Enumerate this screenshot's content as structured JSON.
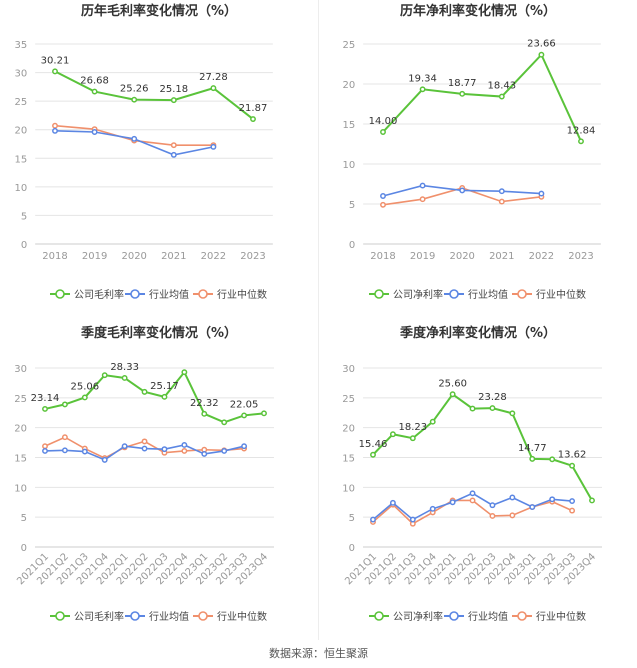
{
  "footer": "数据来源：恒生聚源",
  "colors": {
    "company": "#5ac33a",
    "avg": "#5b86e3",
    "median": "#f0906c",
    "axis": "#999999",
    "grid": "#e4e4e4"
  },
  "chart_data": [
    {
      "type": "line",
      "title": "历年毛利率变化情况（%）",
      "categories": [
        "2018",
        "2019",
        "2020",
        "2021",
        "2022",
        "2023"
      ],
      "ylim": [
        0,
        35
      ],
      "yticks": [
        0,
        5,
        10,
        15,
        20,
        25,
        30,
        35
      ],
      "legend": "bottom",
      "series": [
        {
          "name": "公司毛利率",
          "values": [
            30.21,
            26.68,
            25.26,
            25.18,
            27.28,
            21.87
          ]
        },
        {
          "name": "行业均值",
          "values": [
            19.8,
            19.6,
            18.4,
            15.6,
            17.0,
            null
          ]
        },
        {
          "name": "行业中位数",
          "values": [
            20.7,
            20.1,
            18.1,
            17.3,
            17.3,
            null
          ]
        }
      ],
      "data_labels": [
        {
          "index": 0,
          "text": "30.21"
        },
        {
          "index": 1,
          "text": "26.68"
        },
        {
          "index": 2,
          "text": "25.26"
        },
        {
          "index": 3,
          "text": "25.18"
        },
        {
          "index": 4,
          "text": "27.28"
        },
        {
          "index": 5,
          "text": "21.87"
        }
      ]
    },
    {
      "type": "line",
      "title": "历年净利率变化情况（%）",
      "categories": [
        "2018",
        "2019",
        "2020",
        "2021",
        "2022",
        "2023"
      ],
      "ylim": [
        0,
        25
      ],
      "yticks": [
        0,
        5,
        10,
        15,
        20,
        25
      ],
      "legend": "bottom",
      "series": [
        {
          "name": "公司净利率",
          "values": [
            14.0,
            19.34,
            18.77,
            18.43,
            23.66,
            12.84
          ]
        },
        {
          "name": "行业均值",
          "values": [
            6.0,
            7.3,
            6.7,
            6.6,
            6.3,
            null
          ]
        },
        {
          "name": "行业中位数",
          "values": [
            4.9,
            5.6,
            7.0,
            5.3,
            5.9,
            null
          ]
        }
      ],
      "data_labels": [
        {
          "index": 0,
          "text": "14.00"
        },
        {
          "index": 1,
          "text": "19.34"
        },
        {
          "index": 2,
          "text": "18.77"
        },
        {
          "index": 3,
          "text": "18.43"
        },
        {
          "index": 4,
          "text": "23.66"
        },
        {
          "index": 5,
          "text": "12.84"
        }
      ]
    },
    {
      "type": "line",
      "title": "季度毛利率变化情况（%）",
      "categories": [
        "2021Q1",
        "2021Q2",
        "2021Q3",
        "2021Q4",
        "2022Q1",
        "2022Q2",
        "2022Q3",
        "2022Q4",
        "2023Q1",
        "2023Q2",
        "2023Q3",
        "2023Q4"
      ],
      "ylim": [
        0,
        30
      ],
      "yticks": [
        0,
        5,
        10,
        15,
        20,
        25,
        30
      ],
      "legend": "bottom",
      "series": [
        {
          "name": "公司毛利率",
          "values": [
            23.14,
            23.9,
            25.06,
            28.8,
            28.33,
            26.0,
            25.17,
            29.3,
            22.32,
            20.9,
            22.05,
            22.4
          ]
        },
        {
          "name": "行业均值",
          "values": [
            16.1,
            16.2,
            16.0,
            14.6,
            16.9,
            16.5,
            16.4,
            17.1,
            15.6,
            16.1,
            16.9,
            null
          ]
        },
        {
          "name": "行业中位数",
          "values": [
            16.9,
            18.4,
            16.5,
            14.9,
            16.7,
            17.7,
            15.8,
            16.1,
            16.3,
            16.2,
            16.5,
            null
          ]
        }
      ],
      "data_labels": [
        {
          "index": 0,
          "text": "23.14"
        },
        {
          "index": 2,
          "text": "25.06"
        },
        {
          "index": 4,
          "text": "28.33"
        },
        {
          "index": 6,
          "text": "25.17"
        },
        {
          "index": 8,
          "text": "22.32"
        },
        {
          "index": 10,
          "text": "22.05"
        }
      ]
    },
    {
      "type": "line",
      "title": "季度净利率变化情况（%）",
      "categories": [
        "2021Q1",
        "2021Q2",
        "2021Q3",
        "2021Q4",
        "2022Q1",
        "2022Q2",
        "2022Q3",
        "2022Q4",
        "2023Q1",
        "2023Q2",
        "2023Q3",
        "2023Q4"
      ],
      "ylim": [
        0,
        30
      ],
      "yticks": [
        0,
        5,
        10,
        15,
        20,
        25,
        30
      ],
      "legend": "bottom",
      "series": [
        {
          "name": "公司净利率",
          "values": [
            15.46,
            18.9,
            18.23,
            21.0,
            25.6,
            23.2,
            23.28,
            22.4,
            14.77,
            14.7,
            13.62,
            7.8
          ]
        },
        {
          "name": "行业均值",
          "values": [
            4.6,
            7.4,
            4.6,
            6.4,
            7.5,
            9.0,
            7.0,
            8.3,
            6.7,
            8.0,
            7.7,
            null
          ]
        },
        {
          "name": "行业中位数",
          "values": [
            4.2,
            7.1,
            3.9,
            5.8,
            7.8,
            7.8,
            5.2,
            5.3,
            6.7,
            7.6,
            6.1,
            null
          ]
        }
      ],
      "data_labels": [
        {
          "index": 0,
          "text": "15.46"
        },
        {
          "index": 2,
          "text": "18.23"
        },
        {
          "index": 4,
          "text": "25.60"
        },
        {
          "index": 6,
          "text": "23.28"
        },
        {
          "index": 8,
          "text": "14.77"
        },
        {
          "index": 10,
          "text": "13.62"
        }
      ]
    }
  ]
}
